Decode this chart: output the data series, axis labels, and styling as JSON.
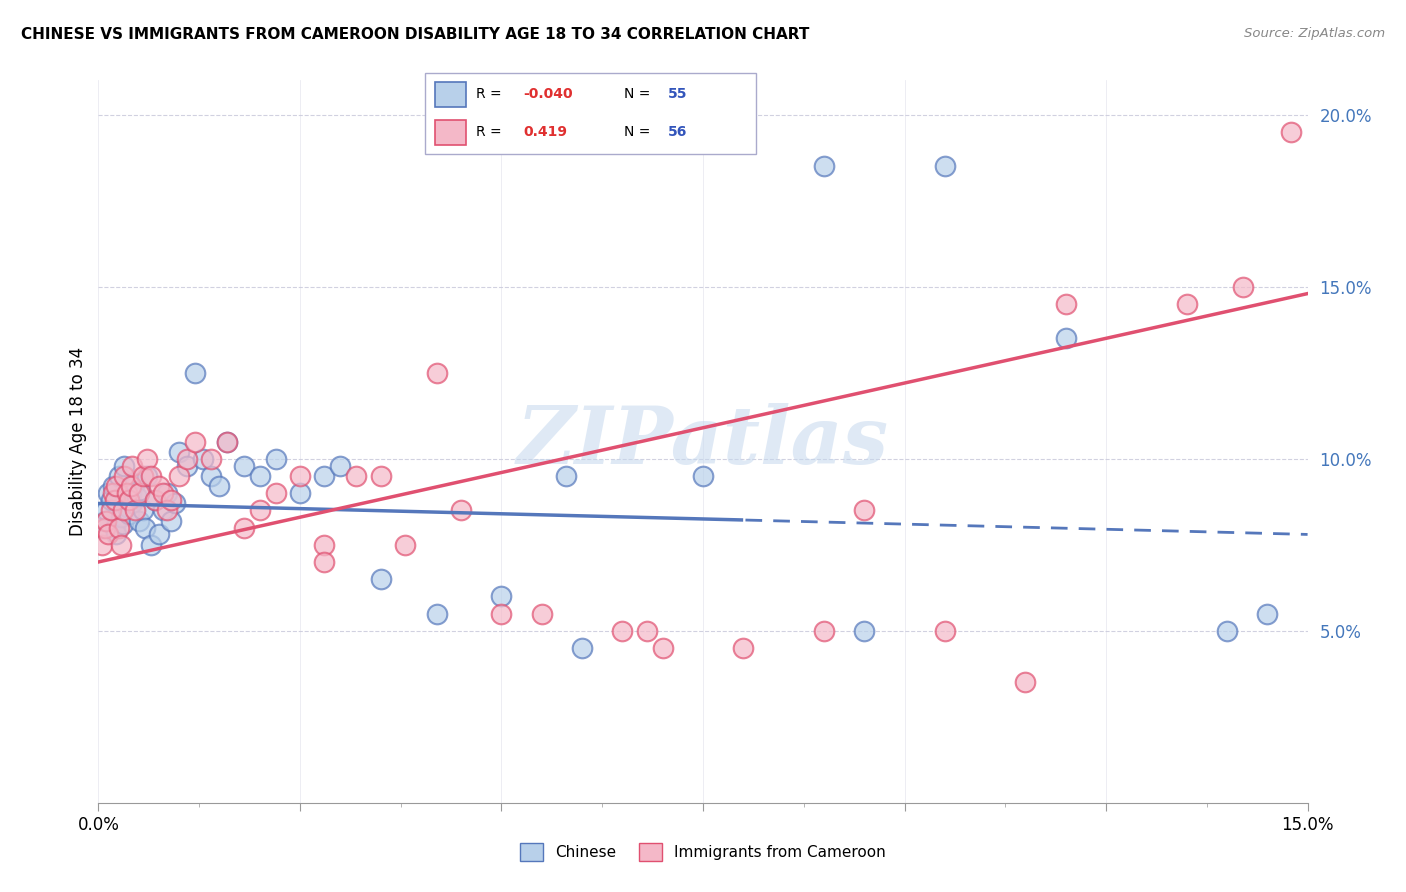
{
  "title": "CHINESE VS IMMIGRANTS FROM CAMEROON DISABILITY AGE 18 TO 34 CORRELATION CHART",
  "source": "Source: ZipAtlas.com",
  "ylabel": "Disability Age 18 to 34",
  "xlim": [
    0.0,
    15.0
  ],
  "ylim": [
    0.0,
    21.0
  ],
  "yticks": [
    5.0,
    10.0,
    15.0,
    20.0
  ],
  "color_chinese": "#b8d0ea",
  "color_cameroon": "#f4b8c8",
  "color_line_chinese": "#5577bb",
  "color_line_cameroon": "#e05070",
  "watermark_text": "ZIPatlas",
  "chinese_x": [
    0.05,
    0.08,
    0.1,
    0.12,
    0.15,
    0.18,
    0.2,
    0.22,
    0.25,
    0.28,
    0.3,
    0.32,
    0.35,
    0.38,
    0.4,
    0.42,
    0.45,
    0.48,
    0.5,
    0.52,
    0.55,
    0.58,
    0.6,
    0.65,
    0.7,
    0.75,
    0.8,
    0.85,
    0.9,
    0.95,
    1.0,
    1.1,
    1.2,
    1.3,
    1.4,
    1.5,
    1.6,
    1.8,
    2.0,
    2.2,
    2.5,
    2.8,
    3.0,
    3.5,
    4.2,
    5.0,
    6.0,
    7.5,
    9.0,
    10.5,
    12.0,
    14.0,
    14.5,
    5.8,
    9.5
  ],
  "chinese_y": [
    8.0,
    8.2,
    8.5,
    9.0,
    8.8,
    9.2,
    8.0,
    7.8,
    9.5,
    8.3,
    8.1,
    9.8,
    8.6,
    8.4,
    9.0,
    8.7,
    9.3,
    8.9,
    8.2,
    9.1,
    8.5,
    8.0,
    9.5,
    7.5,
    8.8,
    7.8,
    8.5,
    9.0,
    8.2,
    8.7,
    10.2,
    9.8,
    12.5,
    10.0,
    9.5,
    9.2,
    10.5,
    9.8,
    9.5,
    10.0,
    9.0,
    9.5,
    9.8,
    6.5,
    5.5,
    6.0,
    4.5,
    9.5,
    18.5,
    18.5,
    13.5,
    5.0,
    5.5,
    9.5,
    5.0
  ],
  "cameroon_x": [
    0.05,
    0.08,
    0.1,
    0.12,
    0.15,
    0.18,
    0.2,
    0.22,
    0.25,
    0.28,
    0.3,
    0.32,
    0.35,
    0.38,
    0.4,
    0.42,
    0.45,
    0.5,
    0.55,
    0.6,
    0.65,
    0.7,
    0.75,
    0.8,
    0.85,
    0.9,
    1.0,
    1.1,
    1.2,
    1.4,
    1.6,
    1.8,
    2.0,
    2.2,
    2.5,
    2.8,
    3.2,
    3.8,
    4.5,
    5.5,
    6.5,
    8.0,
    9.5,
    10.5,
    12.0,
    13.5,
    14.8,
    3.5,
    5.0,
    7.0,
    9.0,
    11.5,
    2.8,
    4.2,
    6.8,
    14.2
  ],
  "cameroon_y": [
    7.5,
    8.0,
    8.2,
    7.8,
    8.5,
    9.0,
    8.8,
    9.2,
    8.0,
    7.5,
    8.5,
    9.5,
    9.0,
    8.8,
    9.2,
    9.8,
    8.5,
    9.0,
    9.5,
    10.0,
    9.5,
    8.8,
    9.2,
    9.0,
    8.5,
    8.8,
    9.5,
    10.0,
    10.5,
    10.0,
    10.5,
    8.0,
    8.5,
    9.0,
    9.5,
    7.5,
    9.5,
    7.5,
    8.5,
    5.5,
    5.0,
    4.5,
    8.5,
    5.0,
    14.5,
    14.5,
    19.5,
    9.5,
    5.5,
    4.5,
    5.0,
    3.5,
    7.0,
    12.5,
    5.0,
    15.0
  ],
  "line_chinese_x0": 0.0,
  "line_chinese_y0": 8.7,
  "line_chinese_x1": 15.0,
  "line_chinese_y1": 7.8,
  "line_chinese_solid_end": 8.0,
  "line_cameroon_x0": 0.0,
  "line_cameroon_y0": 7.0,
  "line_cameroon_x1": 15.0,
  "line_cameroon_y1": 14.8
}
